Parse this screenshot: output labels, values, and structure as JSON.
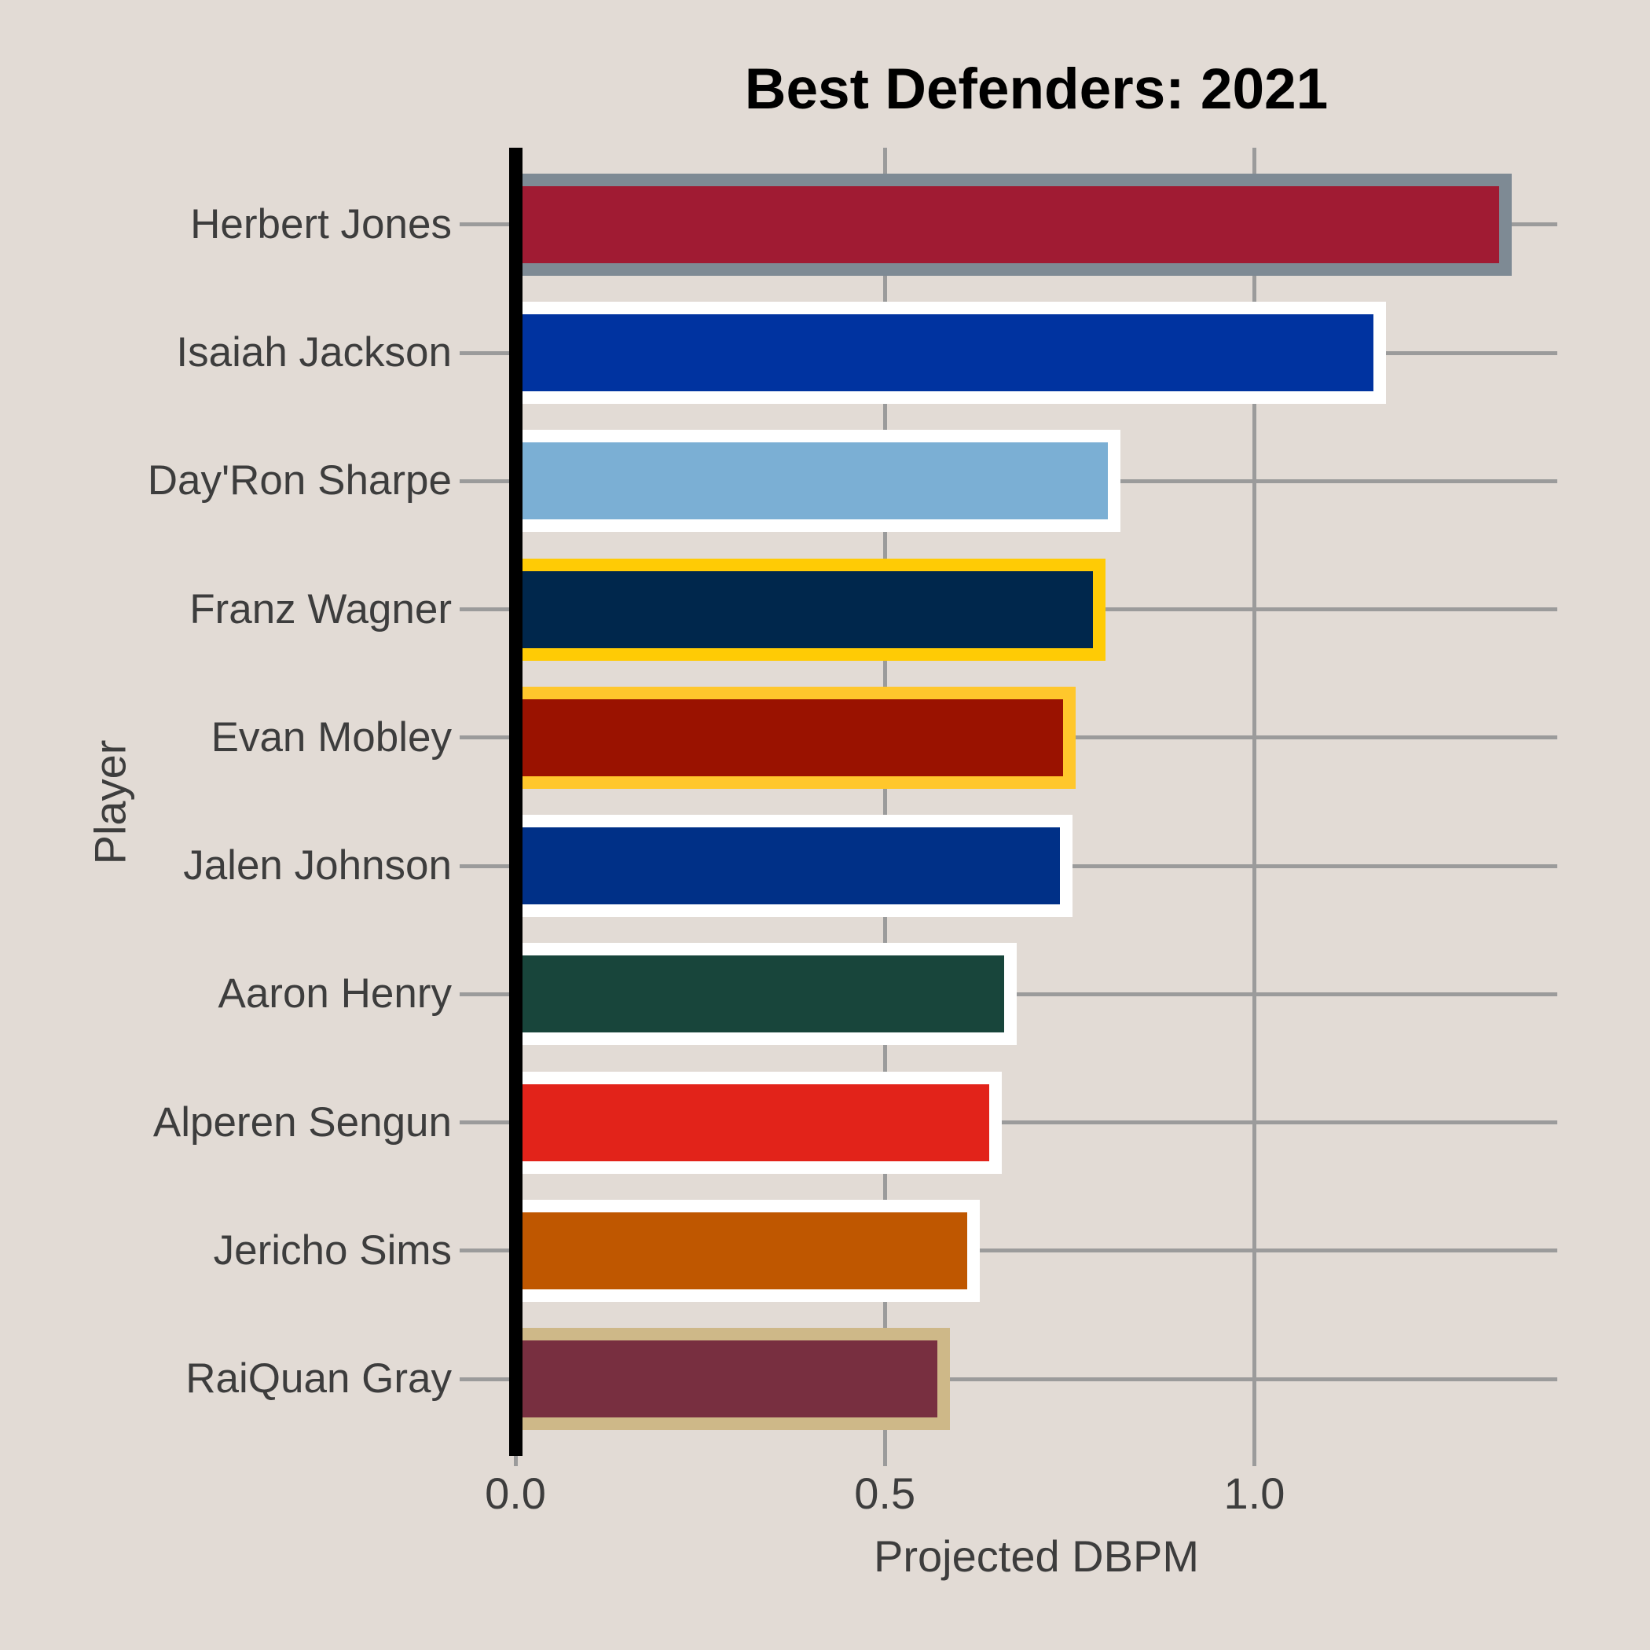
{
  "chart_data": {
    "type": "bar",
    "orientation": "horizontal",
    "title": "Best Defenders: 2021",
    "xlabel": "Projected DBPM",
    "ylabel": "Player",
    "xlim": [
      0,
      1.41
    ],
    "grid": true,
    "legend": "none",
    "xticks": [
      {
        "value": 0.0,
        "label": "0.0"
      },
      {
        "value": 0.5,
        "label": "0.5"
      },
      {
        "value": 1.0,
        "label": "1.0"
      }
    ],
    "players": [
      {
        "name": "Herbert Jones",
        "value": 1.34,
        "fill": "#A01B33",
        "outline": "#7E8A94"
      },
      {
        "name": "Isaiah Jackson",
        "value": 1.17,
        "fill": "#0033A0",
        "outline": "#FFFFFF"
      },
      {
        "name": "Day'Ron Sharpe",
        "value": 0.81,
        "fill": "#7BAFD4",
        "outline": "#FFFFFF"
      },
      {
        "name": "Franz Wagner",
        "value": 0.79,
        "fill": "#00274C",
        "outline": "#FFCB05"
      },
      {
        "name": "Evan Mobley",
        "value": 0.75,
        "fill": "#9A1200",
        "outline": "#FFC72C"
      },
      {
        "name": "Jalen Johnson",
        "value": 0.745,
        "fill": "#003087",
        "outline": "#FFFFFF"
      },
      {
        "name": "Aaron Henry",
        "value": 0.67,
        "fill": "#18453B",
        "outline": "#FFFFFF"
      },
      {
        "name": "Alperen Sengun",
        "value": 0.65,
        "fill": "#E2231A",
        "outline": "#FFFFFF"
      },
      {
        "name": "Jericho Sims",
        "value": 0.62,
        "fill": "#BF5700",
        "outline": "#FFFFFF"
      },
      {
        "name": "RaiQuan Gray",
        "value": 0.58,
        "fill": "#782F40",
        "outline": "#CEB888"
      }
    ]
  },
  "style": {
    "background": "#E2DBD5",
    "grid_color": "#9B9B9B",
    "text_color": "#3D3D3D",
    "title_color": "#000000",
    "zero_line_color": "#000000"
  }
}
